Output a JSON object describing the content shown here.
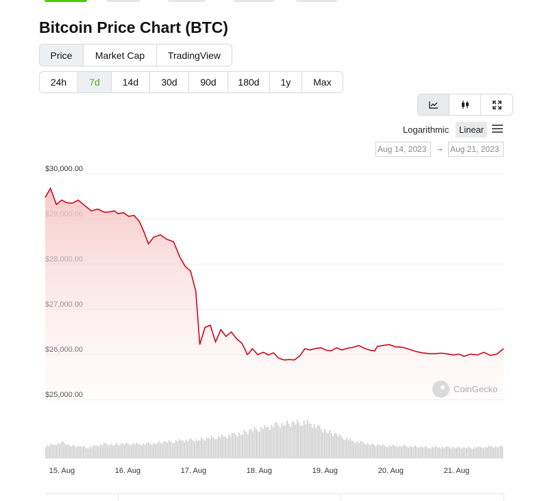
{
  "page": {
    "title": "Bitcoin Price Chart (BTC)"
  },
  "metric_tabs": [
    {
      "label": "Price",
      "active": true
    },
    {
      "label": "Market Cap",
      "active": false
    },
    {
      "label": "TradingView",
      "active": false
    }
  ],
  "range_tabs": [
    {
      "label": "24h",
      "active": false
    },
    {
      "label": "7d",
      "active": true
    },
    {
      "label": "14d",
      "active": false
    },
    {
      "label": "30d",
      "active": false
    },
    {
      "label": "90d",
      "active": false
    },
    {
      "label": "180d",
      "active": false
    },
    {
      "label": "1y",
      "active": false
    },
    {
      "label": "Max",
      "active": false
    }
  ],
  "chart_tools": [
    {
      "icon": "line-chart-icon",
      "active": true
    },
    {
      "icon": "candlestick-icon",
      "active": false
    },
    {
      "icon": "fullscreen-icon",
      "active": false
    }
  ],
  "scale": {
    "logarithmic_label": "Logarithmic",
    "linear_label": "Linear",
    "selected": "Linear"
  },
  "date_range": {
    "from": "Aug 14, 2023",
    "arrow": "→",
    "to": "Aug 21, 2023"
  },
  "watermark": {
    "text": "CoinGecko"
  },
  "colors": {
    "line": "#d0021b",
    "area_top": "#f6c7c4",
    "volume_bar": "#d4d4d4",
    "active_tab_text": "#4bab1f",
    "grid": "#ececec"
  },
  "chart_data": {
    "type": "area",
    "title": "Bitcoin Price Chart (BTC)",
    "ylabel": "",
    "xlabel": "",
    "ylim": [
      25000,
      30000
    ],
    "yticks": [
      30000,
      29000,
      28000,
      27000,
      26000,
      25000
    ],
    "ytick_labels": [
      "$30,000.00",
      "$29,000.00",
      "$28,000.00",
      "$27,000.00",
      "$26,000.00",
      "$25,000.00"
    ],
    "xlim": [
      -0.05,
      6.92
    ],
    "xticks": [
      0,
      1,
      2,
      3,
      4,
      5,
      6
    ],
    "xtick_labels": [
      "15. Aug",
      "16. Aug",
      "17. Aug",
      "18. Aug",
      "19. Aug",
      "20. Aug",
      "21. Aug"
    ],
    "grid": true,
    "legend": false,
    "series": [
      {
        "x": [
          -0.05,
          0.03,
          0.12,
          0.2,
          0.28,
          0.36,
          0.45,
          0.55,
          0.65,
          0.75,
          0.85,
          0.93,
          1.0,
          1.06,
          1.14,
          1.22,
          1.3,
          1.38,
          1.45,
          1.52,
          1.6,
          1.7,
          1.8,
          1.9,
          2.0,
          2.08,
          2.16,
          2.24,
          2.3,
          2.38,
          2.46,
          2.54,
          2.62,
          2.7,
          2.78,
          2.86,
          2.94,
          3.0,
          3.02,
          3.05,
          3.1,
          3.18,
          3.27,
          3.34,
          3.42,
          3.5,
          3.58,
          3.66,
          3.74,
          3.82,
          3.9,
          3.98,
          4.05,
          4.14,
          4.22,
          4.3,
          4.38,
          4.46,
          4.55,
          4.63,
          4.72,
          4.8,
          4.88,
          4.96,
          5.0,
          5.08,
          5.18,
          5.28,
          5.38,
          5.48,
          5.58,
          5.68,
          5.78,
          5.88,
          5.98,
          6.08,
          6.16,
          6.24,
          6.32,
          6.42,
          6.52,
          6.62,
          6.72,
          6.82,
          6.92
        ],
        "y": [
          29480,
          29680,
          29320,
          29420,
          29360,
          29350,
          29420,
          29300,
          29180,
          29220,
          29150,
          29160,
          29180,
          29120,
          29140,
          29060,
          29080,
          28950,
          28720,
          28450,
          28600,
          28650,
          28550,
          28500,
          28150,
          27950,
          27850,
          27400,
          26220,
          26600,
          26650,
          26280,
          26550,
          26400,
          26500,
          26350,
          26250,
          26080,
          26000,
          26030,
          26130,
          26000,
          26050,
          25990,
          26040,
          25920,
          25880,
          25890,
          25880,
          25970,
          26130,
          26100,
          26130,
          26150,
          26100,
          26080,
          26150,
          26100,
          26140,
          26160,
          26200,
          26140,
          26100,
          26080,
          26180,
          26200,
          26220,
          26170,
          26160,
          26120,
          26070,
          26040,
          26020,
          26020,
          26030,
          26010,
          25990,
          26010,
          25960,
          26010,
          25990,
          26050,
          25980,
          26010,
          26130
        ]
      }
    ],
    "volume": {
      "x": [
        -0.05,
        0.08,
        0.21,
        0.34,
        0.47,
        0.6,
        0.73,
        0.86,
        0.99,
        1.12,
        1.25,
        1.38,
        1.51,
        1.64,
        1.77,
        1.9,
        2.03,
        2.16,
        2.29,
        2.42,
        2.55,
        2.68,
        2.81,
        2.94,
        3.07,
        3.2,
        3.33,
        3.46,
        3.59,
        3.72,
        3.85,
        3.98,
        4.11,
        4.24,
        4.37,
        4.5,
        4.63,
        4.76,
        4.89,
        5.02,
        5.15,
        5.28,
        5.41,
        5.54,
        5.67,
        5.8,
        5.93,
        6.06,
        6.19,
        6.32,
        6.45,
        6.58,
        6.71,
        6.84
      ],
      "values": [
        0.4,
        0.45,
        0.5,
        0.4,
        0.38,
        0.35,
        0.42,
        0.45,
        0.44,
        0.46,
        0.48,
        0.45,
        0.47,
        0.5,
        0.52,
        0.55,
        0.58,
        0.57,
        0.6,
        0.64,
        0.68,
        0.7,
        0.75,
        0.8,
        0.9,
        0.95,
        1.0,
        1.05,
        1.1,
        1.12,
        1.15,
        1.1,
        0.95,
        0.85,
        0.75,
        0.65,
        0.55,
        0.5,
        0.45,
        0.42,
        0.4,
        0.4,
        0.38,
        0.38,
        0.36,
        0.36,
        0.36,
        0.35,
        0.35,
        0.34,
        0.35,
        0.36,
        0.37,
        0.38
      ]
    }
  }
}
